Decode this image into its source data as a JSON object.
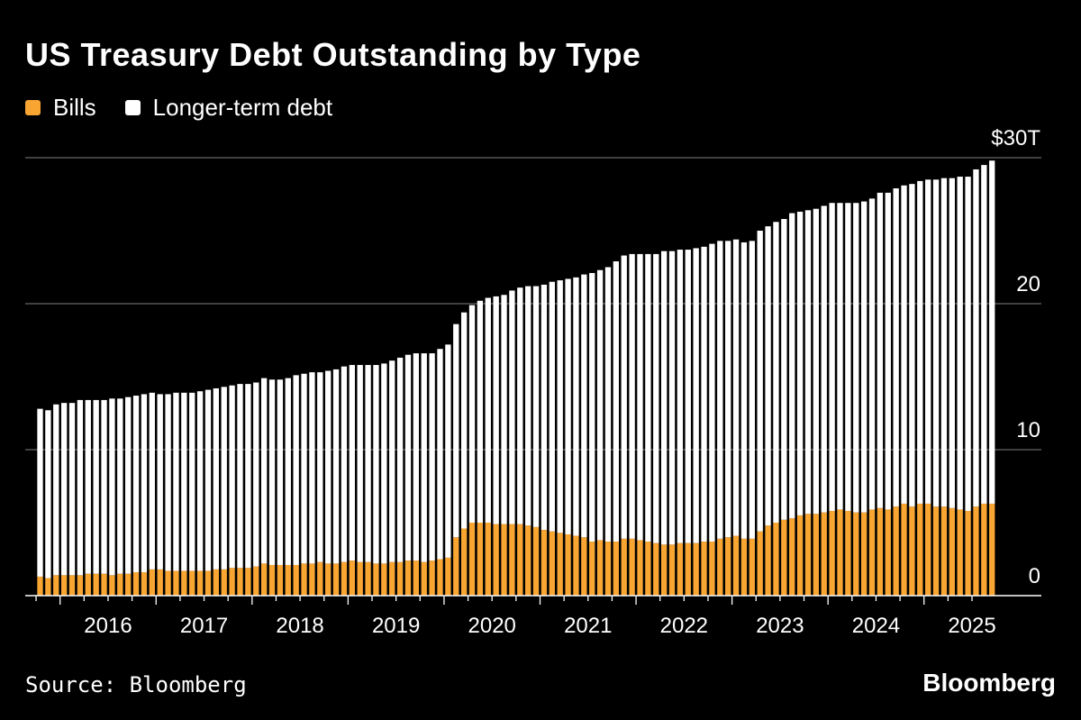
{
  "header": {
    "title": "US Treasury Debt Outstanding by Type"
  },
  "legend": {
    "items": [
      {
        "label": "Bills",
        "color": "#f8a532"
      },
      {
        "label": "Longer-term debt",
        "color": "#ffffff"
      }
    ]
  },
  "footer": {
    "source": "Source: Bloomberg",
    "brand": "Bloomberg"
  },
  "colors": {
    "background": "#000000",
    "bills": "#f8a532",
    "longer": "#ffffff",
    "grid": "#555555"
  },
  "chart_data": {
    "type": "bar",
    "stacked": true,
    "title": "US Treasury Debt Outstanding by Type",
    "xlabel": "",
    "ylabel": "",
    "ylim": [
      0,
      30
    ],
    "y_ticks": [
      0,
      10,
      20,
      30
    ],
    "y_tick_labels": [
      "0",
      "10",
      "20",
      "$30T"
    ],
    "x_tick_labels": [
      "2016",
      "2017",
      "2018",
      "2019",
      "2020",
      "2021",
      "2022",
      "2023",
      "2024",
      "2025"
    ],
    "start": "2015-10",
    "frequency": "monthly",
    "series": [
      {
        "name": "Bills",
        "values": [
          1.3,
          1.2,
          1.4,
          1.4,
          1.4,
          1.4,
          1.5,
          1.5,
          1.5,
          1.4,
          1.5,
          1.5,
          1.6,
          1.6,
          1.8,
          1.8,
          1.7,
          1.7,
          1.7,
          1.7,
          1.7,
          1.7,
          1.8,
          1.8,
          1.9,
          1.9,
          1.9,
          2.0,
          2.2,
          2.1,
          2.1,
          2.1,
          2.1,
          2.2,
          2.2,
          2.3,
          2.2,
          2.2,
          2.3,
          2.4,
          2.3,
          2.3,
          2.2,
          2.2,
          2.3,
          2.3,
          2.4,
          2.4,
          2.3,
          2.4,
          2.5,
          2.6,
          4.0,
          4.6,
          5.0,
          5.0,
          5.0,
          4.9,
          4.9,
          4.9,
          4.9,
          4.8,
          4.7,
          4.5,
          4.4,
          4.3,
          4.2,
          4.1,
          4.0,
          3.7,
          3.8,
          3.7,
          3.7,
          3.9,
          3.9,
          3.8,
          3.7,
          3.6,
          3.5,
          3.5,
          3.6,
          3.6,
          3.6,
          3.7,
          3.7,
          3.9,
          4.0,
          4.1,
          3.9,
          3.9,
          4.4,
          4.8,
          5.0,
          5.2,
          5.3,
          5.5,
          5.6,
          5.6,
          5.7,
          5.8,
          5.9,
          5.8,
          5.7,
          5.7,
          5.9,
          6.0,
          5.9,
          6.1,
          6.3,
          6.1,
          6.3,
          6.3,
          6.1,
          6.1,
          6.0,
          5.9,
          5.8,
          6.1,
          6.3,
          6.3
        ]
      },
      {
        "name": "Longer-term debt",
        "values": [
          11.5,
          11.5,
          11.7,
          11.8,
          11.8,
          12.0,
          11.9,
          11.9,
          11.9,
          12.1,
          12.0,
          12.1,
          12.1,
          12.2,
          12.1,
          12.0,
          12.1,
          12.2,
          12.2,
          12.2,
          12.3,
          12.4,
          12.4,
          12.5,
          12.5,
          12.6,
          12.6,
          12.6,
          12.7,
          12.7,
          12.7,
          12.8,
          13.0,
          13.0,
          13.1,
          13.0,
          13.2,
          13.3,
          13.4,
          13.4,
          13.5,
          13.5,
          13.6,
          13.7,
          13.8,
          14.0,
          14.1,
          14.2,
          14.3,
          14.2,
          14.4,
          14.6,
          14.6,
          14.8,
          14.9,
          15.2,
          15.4,
          15.6,
          15.7,
          16.0,
          16.2,
          16.4,
          16.5,
          16.8,
          17.1,
          17.3,
          17.5,
          17.7,
          18.0,
          18.4,
          18.5,
          18.8,
          19.2,
          19.4,
          19.5,
          19.6,
          19.7,
          19.8,
          20.1,
          20.1,
          20.1,
          20.1,
          20.2,
          20.2,
          20.4,
          20.4,
          20.3,
          20.3,
          20.3,
          20.4,
          20.6,
          20.5,
          20.6,
          20.6,
          20.9,
          20.8,
          20.8,
          20.9,
          21.0,
          21.1,
          21.0,
          21.1,
          21.2,
          21.3,
          21.3,
          21.6,
          21.7,
          21.8,
          21.8,
          22.1,
          22.1,
          22.2,
          22.4,
          22.5,
          22.6,
          22.8,
          22.9,
          23.1,
          23.2,
          23.5
        ]
      }
    ]
  }
}
